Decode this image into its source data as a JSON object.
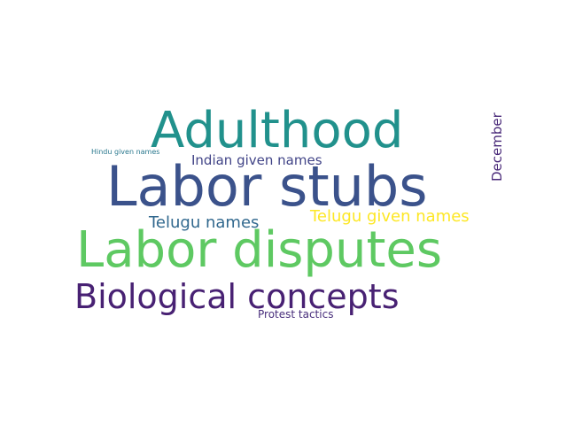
{
  "words": [
    {
      "text": "Adulthood",
      "color": "#21918c"
    },
    {
      "text": "Labor stubs",
      "color": "#3b528b"
    },
    {
      "text": "Labor disputes",
      "color": "#5ec962"
    },
    {
      "text": "Biological concepts",
      "color": "#482173"
    },
    {
      "text": "Indian given names",
      "color": "#414487"
    },
    {
      "text": "Telugu names",
      "color": "#31688e"
    },
    {
      "text": "Telugu given names",
      "color": "#fde725"
    },
    {
      "text": "December",
      "color": "#482878"
    },
    {
      "text": "Hindu given names",
      "color": "#2a788e"
    },
    {
      "text": "Protest tactics",
      "color": "#472d7b"
    }
  ]
}
